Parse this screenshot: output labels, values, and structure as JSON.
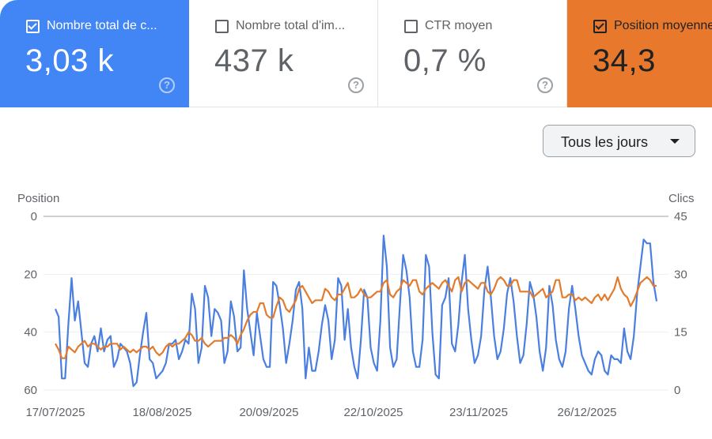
{
  "metrics": [
    {
      "label": "Nombre total de c...",
      "value": "3,03 k",
      "checked": true,
      "color": "#4285f4"
    },
    {
      "label": "Nombre total d'im...",
      "value": "437 k",
      "checked": false,
      "color": "#ffffff"
    },
    {
      "label": "CTR moyen",
      "value": "0,7 %",
      "checked": false,
      "color": "#ffffff"
    },
    {
      "label": "Position moyenne",
      "value": "34,3",
      "checked": true,
      "color": "#e8792c"
    }
  ],
  "help_glyph": "?",
  "range_selector": {
    "label": "Tous les jours"
  },
  "chart_data": {
    "type": "line",
    "left_axis_title": "Position",
    "right_axis_title": "Clics",
    "left_ticks": [
      "0",
      "20",
      "40",
      "60"
    ],
    "right_ticks": [
      "45",
      "30",
      "15",
      "0"
    ],
    "left_axis": {
      "min": 0,
      "max": 60,
      "inverted": true
    },
    "right_axis": {
      "min": 0,
      "max": 45
    },
    "x_tick_labels": [
      "17/07/2025",
      "18/08/2025",
      "20/09/2025",
      "22/10/2025",
      "23/11/2025",
      "26/12/2025"
    ],
    "x_range": [
      "2025-07-17",
      "2026-01-30"
    ],
    "series": [
      {
        "name": "Clics",
        "axis": "right",
        "color": "#4a7fe0",
        "values": [
          21,
          19,
          3,
          3,
          17,
          29,
          18,
          23,
          15,
          7,
          6,
          12,
          14,
          10,
          16,
          10,
          13,
          14,
          6,
          8,
          12,
          11,
          10,
          7,
          1,
          2,
          9,
          15,
          20,
          8,
          7,
          3,
          4,
          5,
          7,
          12,
          12,
          13,
          8,
          10,
          13,
          12,
          25,
          21,
          7,
          11,
          27,
          24,
          14,
          21,
          20,
          18,
          7,
          10,
          23,
          19,
          10,
          11,
          31,
          21,
          15,
          9,
          20,
          14,
          8,
          6,
          6,
          28,
          27,
          22,
          16,
          7,
          12,
          18,
          26,
          28,
          21,
          3,
          11,
          5,
          5,
          10,
          17,
          22,
          18,
          8,
          13,
          29,
          27,
          13,
          21,
          11,
          6,
          3,
          13,
          26,
          24,
          11,
          7,
          5,
          18,
          40,
          32,
          11,
          6,
          8,
          22,
          35,
          31,
          24,
          10,
          6,
          6,
          13,
          35,
          32,
          15,
          4,
          3,
          22,
          24,
          29,
          12,
          10,
          17,
          28,
          35,
          21,
          13,
          7,
          9,
          14,
          26,
          32,
          24,
          14,
          8,
          10,
          16,
          25,
          29,
          23,
          14,
          7,
          9,
          17,
          28,
          25,
          19,
          10,
          5,
          11,
          27,
          22,
          13,
          8,
          6,
          10,
          21,
          27,
          21,
          14,
          9,
          7,
          5,
          4,
          8,
          10,
          9,
          5,
          4,
          9,
          8,
          8,
          7,
          16,
          10,
          8,
          14,
          25,
          32,
          39,
          38,
          38,
          28,
          23
        ]
      },
      {
        "name": "Position",
        "axis": "left",
        "color": "#e37b2c",
        "values": [
          44,
          46,
          49,
          49,
          45,
          46,
          47,
          45,
          44,
          43,
          45,
          44,
          44,
          45,
          46,
          45,
          45,
          44,
          44,
          44,
          46,
          45,
          46,
          47,
          46,
          47,
          46,
          45,
          45,
          46,
          45,
          47,
          48,
          47,
          45,
          44,
          45,
          44,
          44,
          43,
          42,
          40,
          41,
          43,
          43,
          42,
          44,
          45,
          44,
          43,
          43,
          43,
          42,
          42,
          41,
          42,
          44,
          41,
          39,
          36,
          34,
          33,
          33,
          30,
          30,
          34,
          35,
          35,
          31,
          28,
          29,
          32,
          33,
          31,
          29,
          25,
          24,
          26,
          28,
          30,
          29,
          29,
          29,
          25,
          26,
          28,
          29,
          27,
          27,
          25,
          23,
          28,
          28,
          27,
          25,
          27,
          28,
          28,
          27,
          26,
          26,
          23,
          22,
          27,
          28,
          26,
          25,
          22,
          23,
          24,
          22,
          22,
          26,
          27,
          25,
          24,
          23,
          24,
          25,
          23,
          22,
          24,
          26,
          22,
          21,
          26,
          23,
          22,
          23,
          24,
          25,
          23,
          23,
          26,
          27,
          25,
          22,
          21,
          22,
          24,
          24,
          22,
          22,
          26,
          26,
          26,
          26,
          28,
          27,
          26,
          25,
          28,
          27,
          26,
          22,
          22,
          28,
          28,
          27,
          27,
          29,
          28,
          29,
          28,
          29,
          30,
          28,
          27,
          29,
          27,
          29,
          27,
          25,
          21,
          25,
          27,
          28,
          31,
          29,
          26,
          23,
          22,
          21,
          22,
          24,
          24
        ]
      }
    ]
  }
}
